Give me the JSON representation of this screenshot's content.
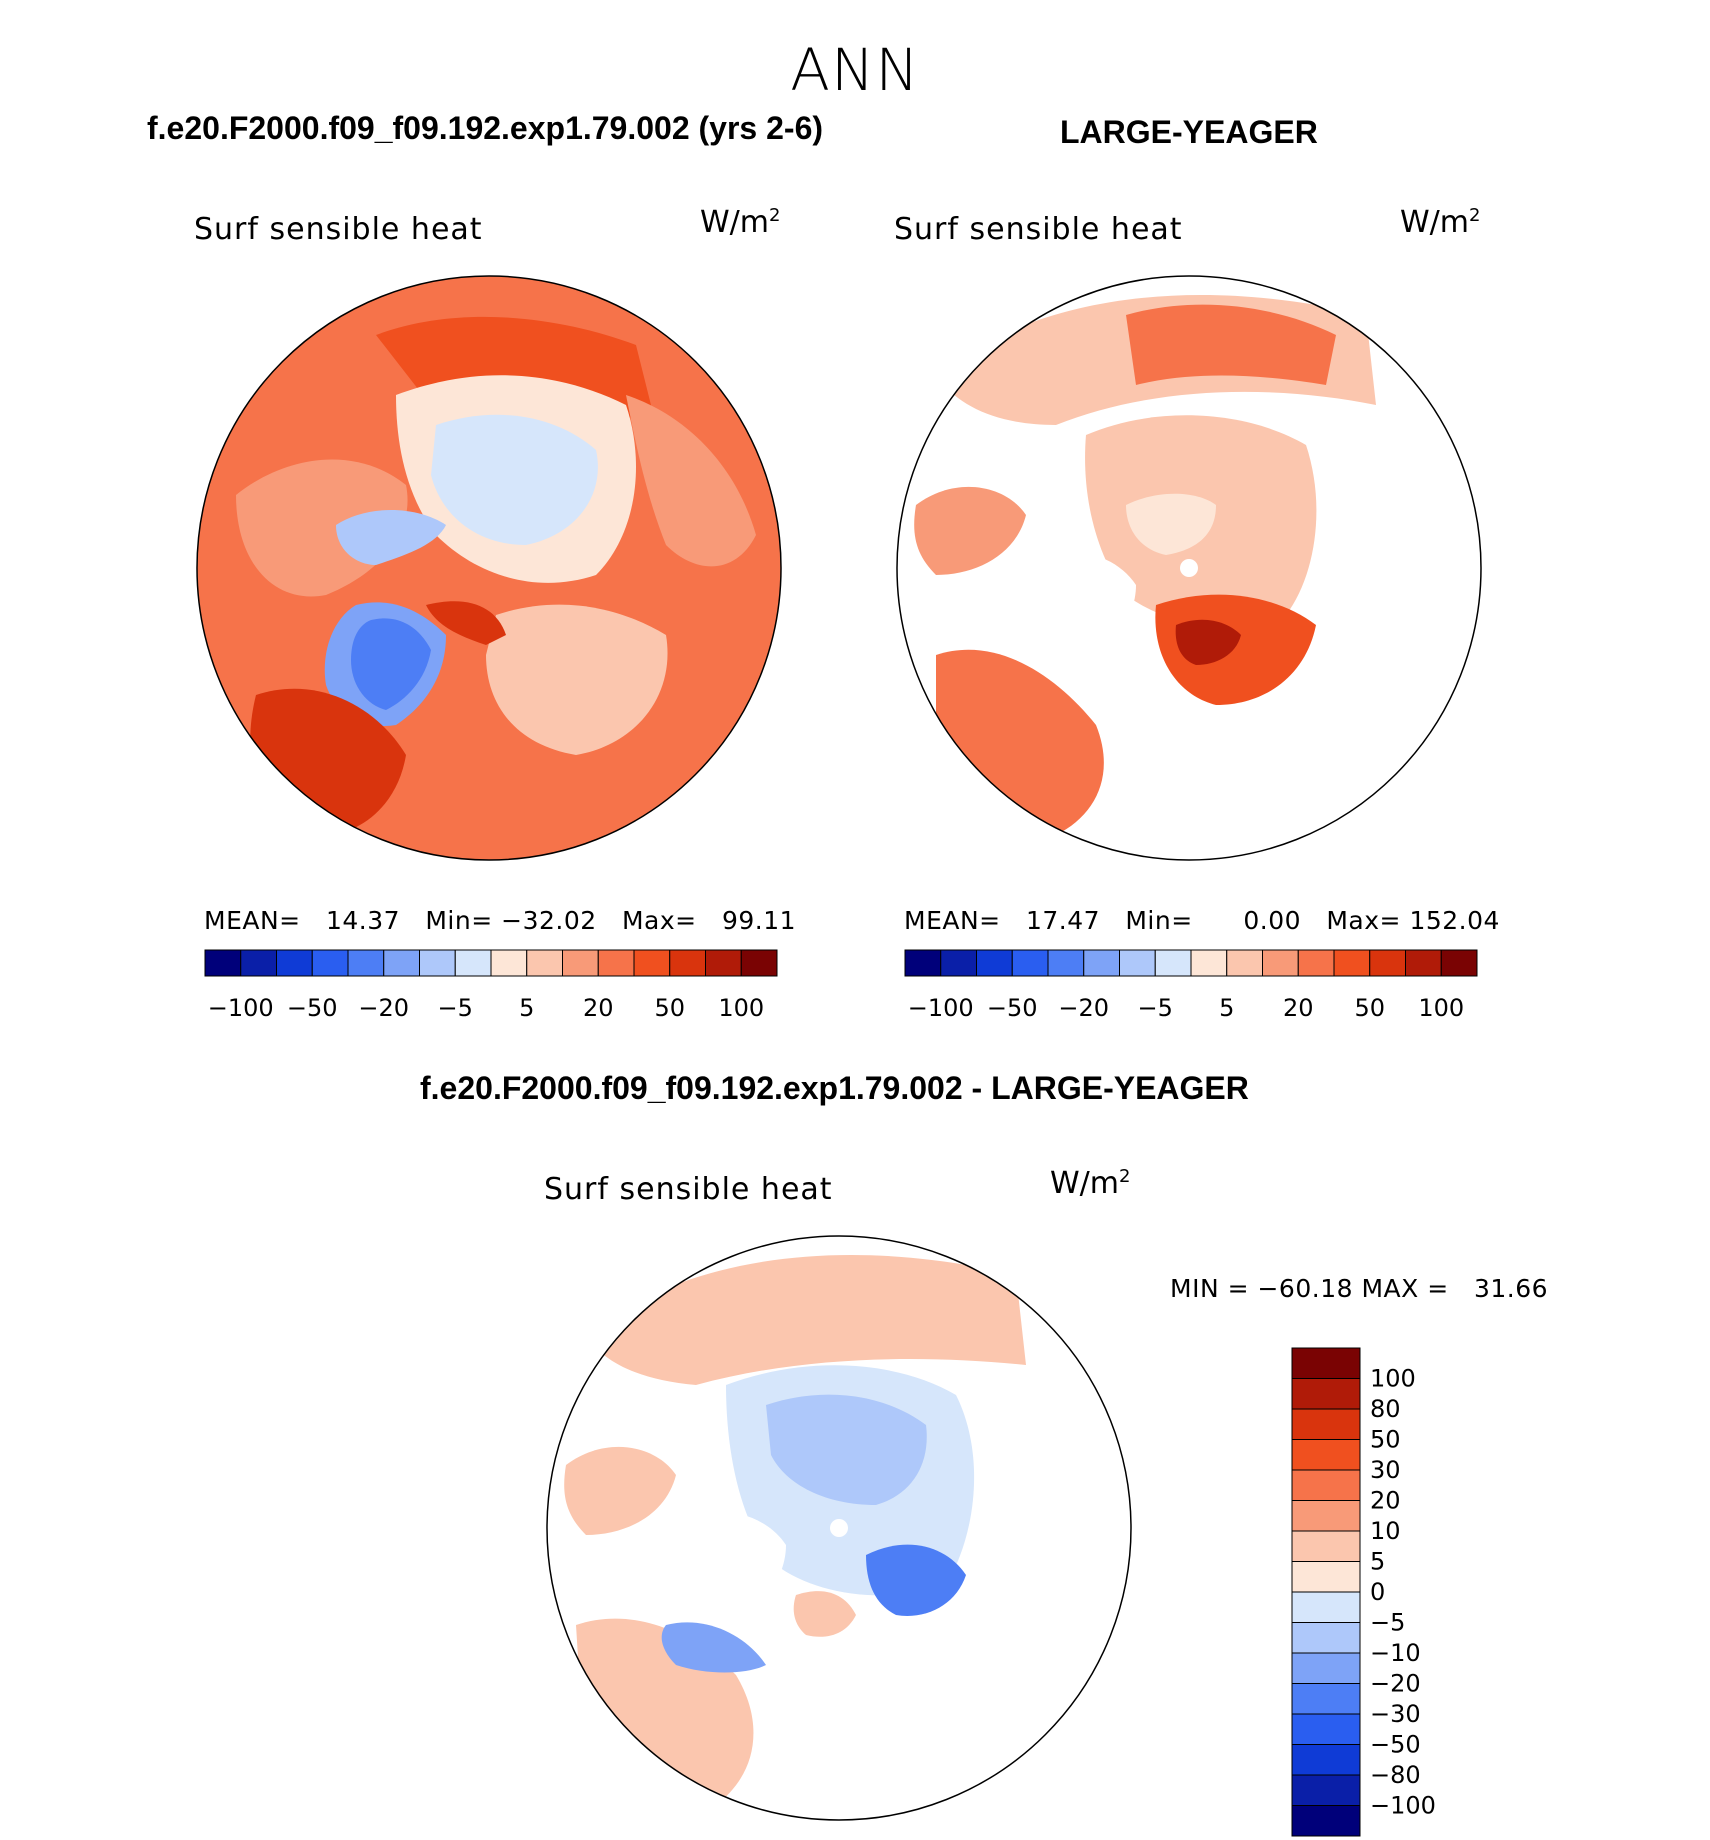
{
  "season": "ANN",
  "panels": [
    {
      "header": "f.e20.F2000.f09_f09.192.exp1.79.002 (yrs 2-6)",
      "variable": "Surf sensible heat",
      "units_base": "W/m",
      "units_exp": "2",
      "stats_line": "MEAN=   14.37   Min= −32.02   Max=   99.11",
      "colorbar_ticks": [
        "−100",
        "−50",
        "−20",
        "−5",
        "5",
        "20",
        "50",
        "100"
      ]
    },
    {
      "header": "LARGE-YEAGER",
      "variable": "Surf sensible heat",
      "units_base": "W/m",
      "units_exp": "2",
      "stats_line": "MEAN=   17.47   Min=      0.00   Max= 152.04",
      "colorbar_ticks": [
        "−100",
        "−50",
        "−20",
        "−5",
        "5",
        "20",
        "50",
        "100"
      ]
    }
  ],
  "diff_panel": {
    "header": "f.e20.F2000.f09_f09.192.exp1.79.002 - LARGE-YEAGER",
    "variable": "Surf sensible heat",
    "units_base": "W/m",
    "units_exp": "2",
    "stats_line": "MIN = −60.18 MAX =   31.66",
    "colorbar_ticks": [
      "100",
      "80",
      "50",
      "30",
      "20",
      "10",
      "5",
      "0",
      "−5",
      "−10",
      "−20",
      "−30",
      "−50",
      "−80",
      "−100"
    ]
  },
  "chart_data": [
    {
      "type": "heatmap",
      "projection": "north-polar-stereographic",
      "title": "f.e20.F2000.f09_f09.192.exp1.79.002 (yrs 2-6)",
      "variable": "Surf sensible heat",
      "units": "W/m2",
      "mean": 14.37,
      "min": -32.02,
      "max": 99.11,
      "levels": [
        -100,
        -75,
        -50,
        -35,
        -20,
        -10,
        -5,
        0,
        5,
        10,
        20,
        35,
        50,
        75,
        100
      ],
      "colors": [
        "#00007a",
        "#0a1fa8",
        "#0f3bd6",
        "#2a5ef0",
        "#4d7ef5",
        "#7ea3f7",
        "#aec8fa",
        "#d6e6fb",
        "#fde6d7",
        "#fbc6ae",
        "#f89a78",
        "#f6734a",
        "#f0501f",
        "#d9340d",
        "#b01b08",
        "#7a0303"
      ],
      "colorbar_placement": "bottom"
    },
    {
      "type": "heatmap",
      "projection": "north-polar-stereographic",
      "title": "LARGE-YEAGER",
      "variable": "Surf sensible heat",
      "units": "W/m2",
      "mean": 17.47,
      "min": 0.0,
      "max": 152.04,
      "levels": [
        -100,
        -75,
        -50,
        -35,
        -20,
        -10,
        -5,
        0,
        5,
        10,
        20,
        35,
        50,
        75,
        100
      ],
      "colors": [
        "#00007a",
        "#0a1fa8",
        "#0f3bd6",
        "#2a5ef0",
        "#4d7ef5",
        "#7ea3f7",
        "#aec8fa",
        "#d6e6fb",
        "#fde6d7",
        "#fbc6ae",
        "#f89a78",
        "#f6734a",
        "#f0501f",
        "#d9340d",
        "#b01b08",
        "#7a0303"
      ],
      "colorbar_placement": "bottom"
    },
    {
      "type": "heatmap",
      "projection": "north-polar-stereographic",
      "title": "f.e20.F2000.f09_f09.192.exp1.79.002 - LARGE-YEAGER",
      "variable": "Surf sensible heat",
      "units": "W/m2",
      "min": -60.18,
      "max": 31.66,
      "levels": [
        100,
        80,
        50,
        30,
        20,
        10,
        5,
        0,
        -5,
        -10,
        -20,
        -30,
        -50,
        -80,
        -100
      ],
      "colors": [
        "#7a0303",
        "#b01b08",
        "#d9340d",
        "#f0501f",
        "#f6734a",
        "#f89a78",
        "#fbc6ae",
        "#fde6d7",
        "#d6e6fb",
        "#aec8fa",
        "#7ea3f7",
        "#4d7ef5",
        "#2a5ef0",
        "#0f3bd6",
        "#0a1fa8",
        "#00007a"
      ],
      "colorbar_placement": "right"
    }
  ]
}
